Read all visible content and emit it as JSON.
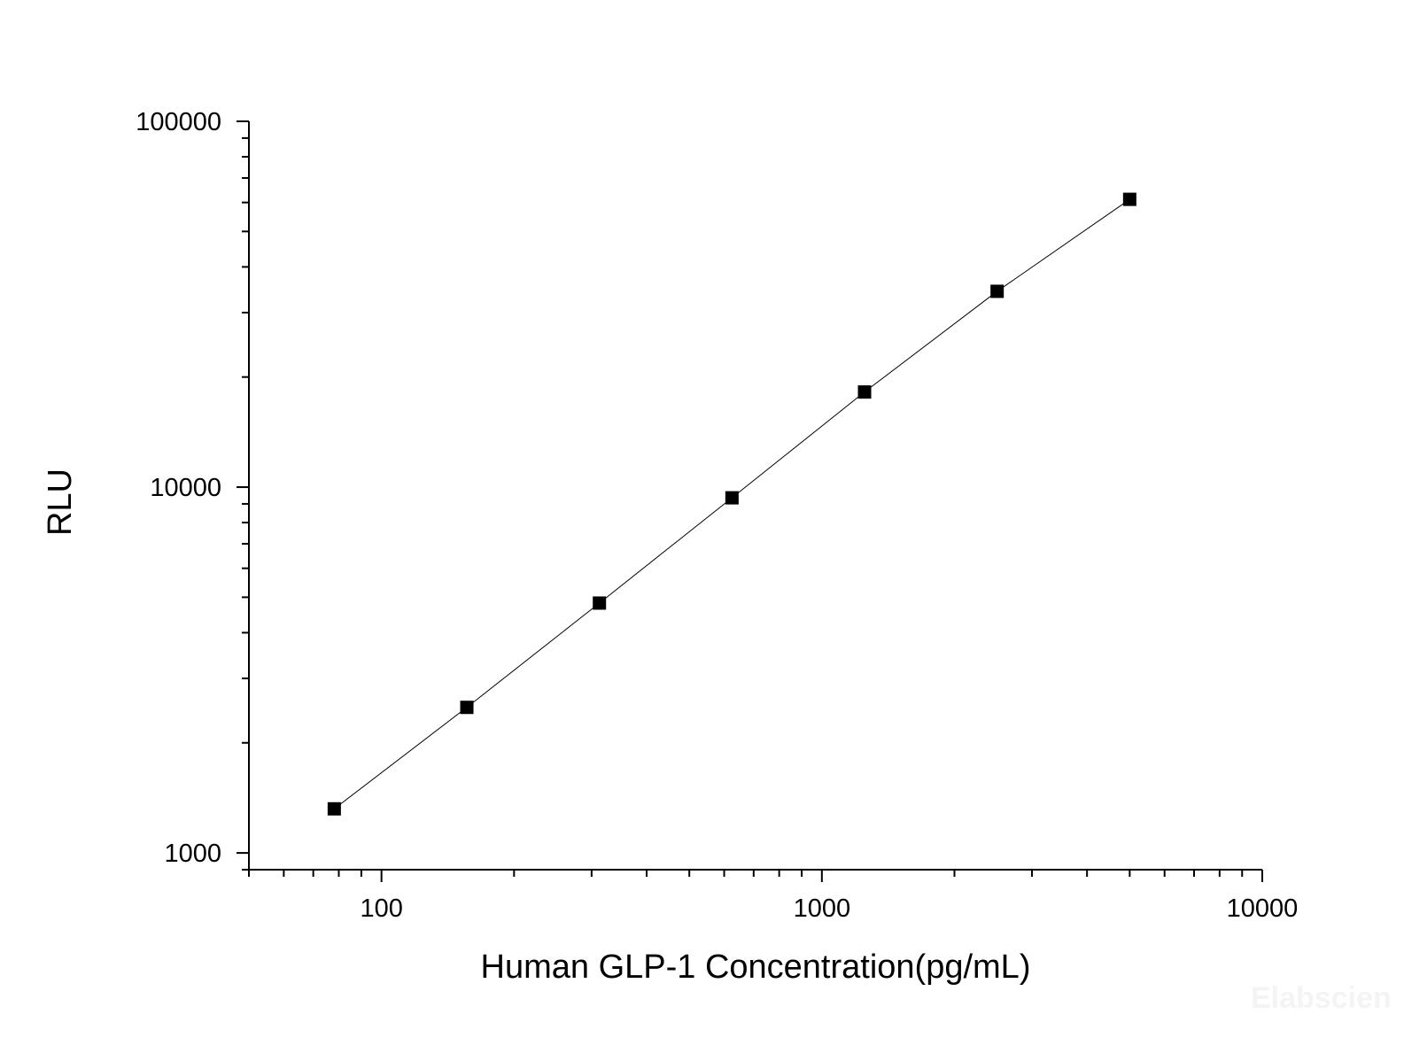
{
  "chart_data": {
    "type": "line",
    "title": "",
    "xlabel": "Human GLP-1 Concentration(pg/mL)",
    "ylabel": "RLU",
    "xscale": "log",
    "yscale": "log",
    "xlim": [
      50,
      10000
    ],
    "ylim": [
      900,
      100000
    ],
    "x_ticks": [
      100,
      1000,
      10000
    ],
    "x_tick_labels": [
      "100",
      "1000",
      "10000"
    ],
    "y_ticks": [
      1000,
      10000,
      100000
    ],
    "y_tick_labels": [
      "1000",
      "10000",
      "100000"
    ],
    "grid": false,
    "marker": "square",
    "color": "#000000",
    "series": [
      {
        "x": [
          78.125,
          156.25,
          312.5,
          625,
          1250,
          2500,
          5000
        ],
        "y": [
          1320,
          2500,
          4820,
          9350,
          18200,
          34300,
          61200
        ]
      }
    ]
  },
  "watermark": "Elabscien"
}
